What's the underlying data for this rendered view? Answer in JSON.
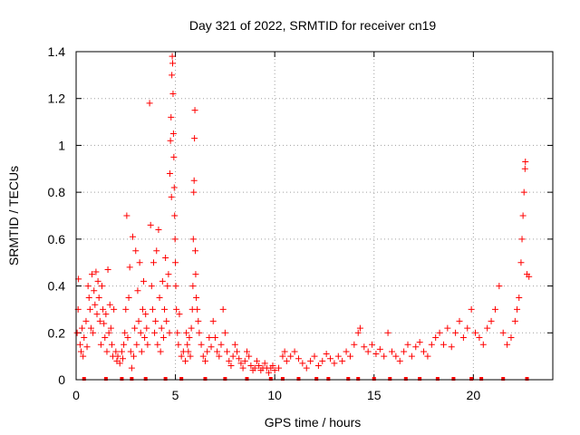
{
  "chart_data": {
    "type": "scatter",
    "title": "Day 321 of 2022, SRMTID for receiver cn19",
    "xlabel": "GPS time / hours",
    "ylabel": "SRMTID / TECUs",
    "xlim": [
      0,
      24
    ],
    "ylim": [
      0,
      1.4
    ],
    "x_ticks": [
      0,
      5,
      10,
      15,
      20
    ],
    "y_ticks": [
      0,
      0.2,
      0.4,
      0.6,
      0.8,
      1,
      1.2,
      1.4
    ],
    "x_tick_labels": [
      "0",
      "5",
      "10",
      "15",
      "20"
    ],
    "y_tick_labels": [
      "0",
      "0.2",
      "0.4",
      "0.6",
      "0.8",
      "1",
      "1.2",
      "1.4"
    ],
    "grid": true,
    "marker": "+",
    "color": "#ff0000",
    "series": [
      {
        "name": "SRMTID",
        "points": [
          [
            0.05,
            0.2
          ],
          [
            0.1,
            0.3
          ],
          [
            0.12,
            0.43
          ],
          [
            0.2,
            0.15
          ],
          [
            0.25,
            0.12
          ],
          [
            0.3,
            0.22
          ],
          [
            0.35,
            0.1
          ],
          [
            0.4,
            0.18
          ],
          [
            0.5,
            0.25
          ],
          [
            0.55,
            0.14
          ],
          [
            0.6,
            0.4
          ],
          [
            0.65,
            0.35
          ],
          [
            0.7,
            0.3
          ],
          [
            0.75,
            0.22
          ],
          [
            0.8,
            0.45
          ],
          [
            0.85,
            0.2
          ],
          [
            0.9,
            0.38
          ],
          [
            0.95,
            0.32
          ],
          [
            1.0,
            0.46
          ],
          [
            1.05,
            0.28
          ],
          [
            1.1,
            0.42
          ],
          [
            1.15,
            0.35
          ],
          [
            1.2,
            0.25
          ],
          [
            1.25,
            0.15
          ],
          [
            1.3,
            0.4
          ],
          [
            1.35,
            0.3
          ],
          [
            1.4,
            0.24
          ],
          [
            1.45,
            0.18
          ],
          [
            1.5,
            0.28
          ],
          [
            1.55,
            0.12
          ],
          [
            1.6,
            0.47
          ],
          [
            1.65,
            0.2
          ],
          [
            1.7,
            0.32
          ],
          [
            1.75,
            0.22
          ],
          [
            1.8,
            0.15
          ],
          [
            1.85,
            0.1
          ],
          [
            1.9,
            0.3
          ],
          [
            2.0,
            0.12
          ],
          [
            2.05,
            0.08
          ],
          [
            2.1,
            0.1
          ],
          [
            2.2,
            0.07
          ],
          [
            2.3,
            0.12
          ],
          [
            2.35,
            0.09
          ],
          [
            2.4,
            0.15
          ],
          [
            2.45,
            0.2
          ],
          [
            2.5,
            0.3
          ],
          [
            2.55,
            0.7
          ],
          [
            2.6,
            0.18
          ],
          [
            2.65,
            0.35
          ],
          [
            2.7,
            0.48
          ],
          [
            2.75,
            0.12
          ],
          [
            2.8,
            0.05
          ],
          [
            2.85,
            0.61
          ],
          [
            2.9,
            0.1
          ],
          [
            2.95,
            0.22
          ],
          [
            3.0,
            0.55
          ],
          [
            3.05,
            0.15
          ],
          [
            3.1,
            0.38
          ],
          [
            3.15,
            0.25
          ],
          [
            3.2,
            0.5
          ],
          [
            3.25,
            0.2
          ],
          [
            3.3,
            0.12
          ],
          [
            3.35,
            0.3
          ],
          [
            3.4,
            0.42
          ],
          [
            3.45,
            0.18
          ],
          [
            3.5,
            0.28
          ],
          [
            3.55,
            0.22
          ],
          [
            3.6,
            0.15
          ],
          [
            3.7,
            1.18
          ],
          [
            3.75,
            0.66
          ],
          [
            3.8,
            0.4
          ],
          [
            3.85,
            0.3
          ],
          [
            3.9,
            0.5
          ],
          [
            3.95,
            0.2
          ],
          [
            4.0,
            0.25
          ],
          [
            4.05,
            0.55
          ],
          [
            4.1,
            0.15
          ],
          [
            4.15,
            0.64
          ],
          [
            4.2,
            0.35
          ],
          [
            4.25,
            0.12
          ],
          [
            4.3,
            0.22
          ],
          [
            4.35,
            0.42
          ],
          [
            4.4,
            0.18
          ],
          [
            4.45,
            0.3
          ],
          [
            4.5,
            0.52
          ],
          [
            4.55,
            0.25
          ],
          [
            4.6,
            0.4
          ],
          [
            4.65,
            0.45
          ],
          [
            4.7,
            0.2
          ],
          [
            4.72,
            0.88
          ],
          [
            4.75,
            1.02
          ],
          [
            4.78,
            1.12
          ],
          [
            4.8,
            0.78
          ],
          [
            4.82,
            1.3
          ],
          [
            4.84,
            1.38
          ],
          [
            4.86,
            1.35
          ],
          [
            4.88,
            1.22
          ],
          [
            4.9,
            1.05
          ],
          [
            4.92,
            0.95
          ],
          [
            4.94,
            0.82
          ],
          [
            4.96,
            0.7
          ],
          [
            4.98,
            0.6
          ],
          [
            5.0,
            0.5
          ],
          [
            5.02,
            0.4
          ],
          [
            5.05,
            0.3
          ],
          [
            5.1,
            0.2
          ],
          [
            5.15,
            0.15
          ],
          [
            5.2,
            0.28
          ],
          [
            5.3,
            0.1
          ],
          [
            5.4,
            0.12
          ],
          [
            5.5,
            0.08
          ],
          [
            5.55,
            0.2
          ],
          [
            5.6,
            0.15
          ],
          [
            5.65,
            0.12
          ],
          [
            5.7,
            0.18
          ],
          [
            5.75,
            0.1
          ],
          [
            5.8,
            0.22
          ],
          [
            5.85,
            0.3
          ],
          [
            5.88,
            0.4
          ],
          [
            5.9,
            0.6
          ],
          [
            5.92,
            0.8
          ],
          [
            5.94,
            0.85
          ],
          [
            5.96,
            1.03
          ],
          [
            5.98,
            1.15
          ],
          [
            6.0,
            0.55
          ],
          [
            6.02,
            0.45
          ],
          [
            6.05,
            0.35
          ],
          [
            6.1,
            0.3
          ],
          [
            6.15,
            0.25
          ],
          [
            6.2,
            0.2
          ],
          [
            6.3,
            0.15
          ],
          [
            6.4,
            0.1
          ],
          [
            6.5,
            0.08
          ],
          [
            6.6,
            0.12
          ],
          [
            6.7,
            0.18
          ],
          [
            6.8,
            0.14
          ],
          [
            6.9,
            0.25
          ],
          [
            7.0,
            0.18
          ],
          [
            7.1,
            0.12
          ],
          [
            7.2,
            0.1
          ],
          [
            7.3,
            0.15
          ],
          [
            7.4,
            0.3
          ],
          [
            7.5,
            0.2
          ],
          [
            7.6,
            0.12
          ],
          [
            7.7,
            0.08
          ],
          [
            7.8,
            0.06
          ],
          [
            7.9,
            0.1
          ],
          [
            8.0,
            0.15
          ],
          [
            8.1,
            0.12
          ],
          [
            8.2,
            0.09
          ],
          [
            8.3,
            0.07
          ],
          [
            8.4,
            0.05
          ],
          [
            8.5,
            0.08
          ],
          [
            8.6,
            0.12
          ],
          [
            8.7,
            0.1
          ],
          [
            8.8,
            0.06
          ],
          [
            8.9,
            0.04
          ],
          [
            9.0,
            0.05
          ],
          [
            9.1,
            0.08
          ],
          [
            9.2,
            0.06
          ],
          [
            9.3,
            0.04
          ],
          [
            9.4,
            0.05
          ],
          [
            9.5,
            0.07
          ],
          [
            9.6,
            0.05
          ],
          [
            9.7,
            0.03
          ],
          [
            9.8,
            0.05
          ],
          [
            9.9,
            0.06
          ],
          [
            10.0,
            0.04
          ],
          [
            10.2,
            0.05
          ],
          [
            10.4,
            0.1
          ],
          [
            10.5,
            0.12
          ],
          [
            10.6,
            0.08
          ],
          [
            10.8,
            0.1
          ],
          [
            11.0,
            0.12
          ],
          [
            11.2,
            0.09
          ],
          [
            11.4,
            0.07
          ],
          [
            11.6,
            0.05
          ],
          [
            11.8,
            0.08
          ],
          [
            12.0,
            0.1
          ],
          [
            12.2,
            0.06
          ],
          [
            12.4,
            0.08
          ],
          [
            12.6,
            0.11
          ],
          [
            12.8,
            0.09
          ],
          [
            13.0,
            0.07
          ],
          [
            13.2,
            0.1
          ],
          [
            13.4,
            0.08
          ],
          [
            13.6,
            0.12
          ],
          [
            13.8,
            0.1
          ],
          [
            14.0,
            0.15
          ],
          [
            14.2,
            0.2
          ],
          [
            14.3,
            0.22
          ],
          [
            14.5,
            0.14
          ],
          [
            14.7,
            0.12
          ],
          [
            14.9,
            0.15
          ],
          [
            15.1,
            0.11
          ],
          [
            15.3,
            0.13
          ],
          [
            15.5,
            0.1
          ],
          [
            15.7,
            0.2
          ],
          [
            15.9,
            0.12
          ],
          [
            16.1,
            0.1
          ],
          [
            16.3,
            0.08
          ],
          [
            16.5,
            0.12
          ],
          [
            16.7,
            0.15
          ],
          [
            16.9,
            0.1
          ],
          [
            17.1,
            0.14
          ],
          [
            17.3,
            0.16
          ],
          [
            17.5,
            0.12
          ],
          [
            17.7,
            0.1
          ],
          [
            17.9,
            0.15
          ],
          [
            18.1,
            0.18
          ],
          [
            18.3,
            0.2
          ],
          [
            18.5,
            0.15
          ],
          [
            18.7,
            0.22
          ],
          [
            18.9,
            0.14
          ],
          [
            19.1,
            0.2
          ],
          [
            19.3,
            0.25
          ],
          [
            19.5,
            0.18
          ],
          [
            19.7,
            0.22
          ],
          [
            19.9,
            0.3
          ],
          [
            20.1,
            0.2
          ],
          [
            20.3,
            0.18
          ],
          [
            20.5,
            0.15
          ],
          [
            20.7,
            0.22
          ],
          [
            20.9,
            0.25
          ],
          [
            21.1,
            0.3
          ],
          [
            21.3,
            0.4
          ],
          [
            21.5,
            0.2
          ],
          [
            21.7,
            0.15
          ],
          [
            21.9,
            0.18
          ],
          [
            22.1,
            0.25
          ],
          [
            22.2,
            0.3
          ],
          [
            22.3,
            0.35
          ],
          [
            22.4,
            0.5
          ],
          [
            22.45,
            0.6
          ],
          [
            22.5,
            0.7
          ],
          [
            22.55,
            0.8
          ],
          [
            22.6,
            0.9
          ],
          [
            22.62,
            0.93
          ],
          [
            22.7,
            0.45
          ],
          [
            22.8,
            0.44
          ]
        ]
      }
    ],
    "bottom_markers_x": [
      0.4,
      1.5,
      2.3,
      2.8,
      3.5,
      4.5,
      5.3,
      6.5,
      7.5,
      8.6,
      9.8,
      10.4,
      11.2,
      12.1,
      12.7,
      13.7,
      14.2,
      15.0,
      15.8,
      16.6,
      17.3,
      18.2,
      19.0,
      19.9,
      20.4,
      21.5,
      22.7
    ]
  }
}
